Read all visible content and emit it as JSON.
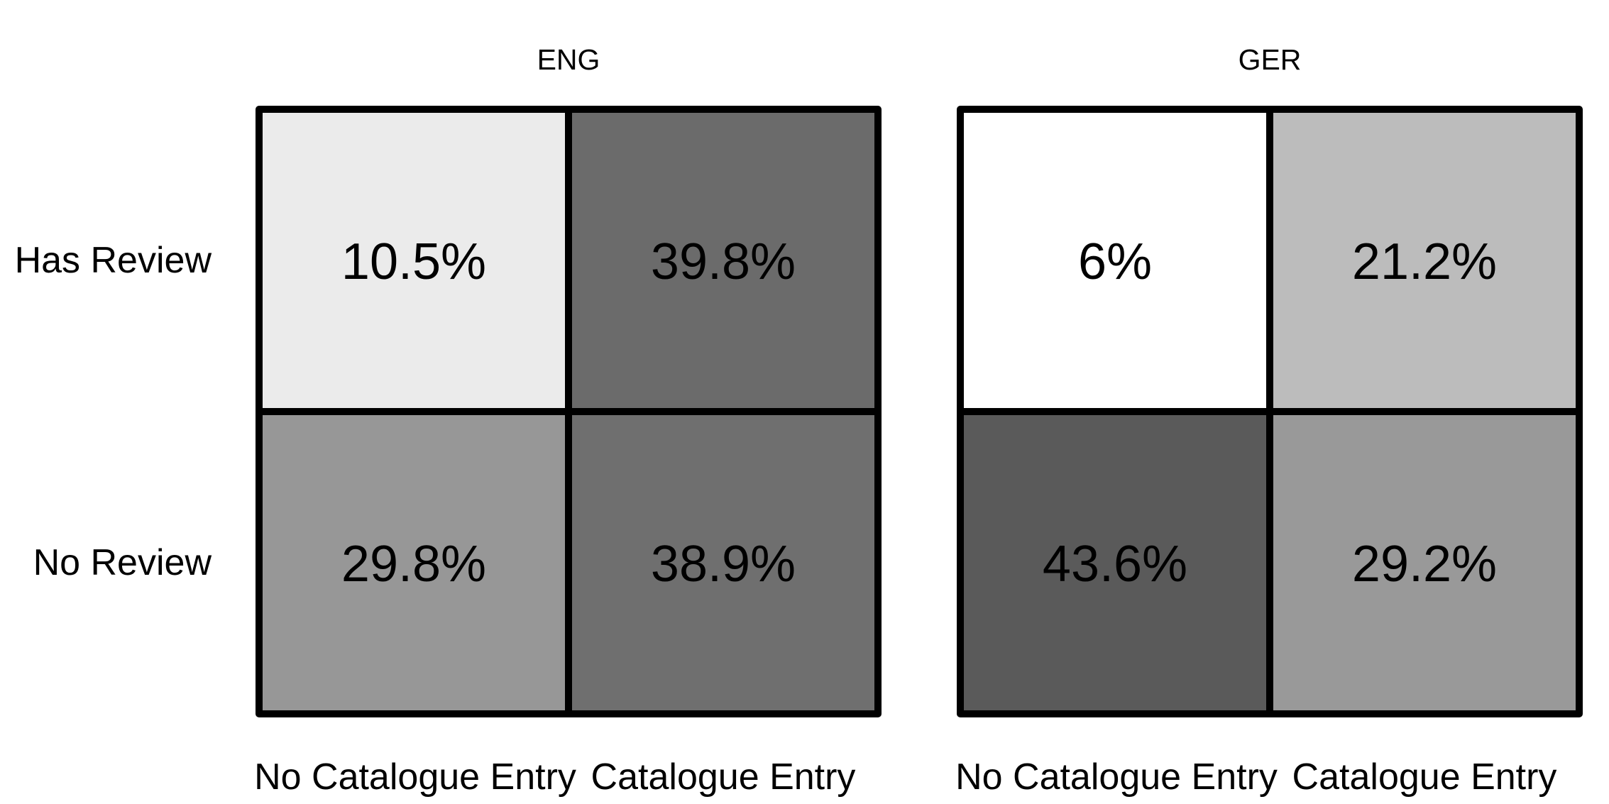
{
  "chart_data": {
    "type": "heatmap",
    "rows": [
      "Has Review",
      "No Review"
    ],
    "columns": [
      "No Catalogue Entry",
      "Catalogue Entry"
    ],
    "panels": [
      {
        "title": "ENG",
        "values": [
          [
            10.5,
            39.8
          ],
          [
            29.8,
            38.9
          ]
        ],
        "labels": [
          [
            "10.5%",
            "39.8%"
          ],
          [
            "29.8%",
            "38.9%"
          ]
        ]
      },
      {
        "title": "GER",
        "values": [
          [
            6,
            21.2
          ],
          [
            43.6,
            29.2
          ]
        ],
        "labels": [
          [
            "6%",
            "21.2%"
          ],
          [
            "43.6%",
            "29.2%"
          ]
        ]
      }
    ],
    "color_scale": {
      "low": "#ffffff",
      "high": "#5a5a5a",
      "min": 6,
      "max": 43.6
    },
    "legend": "none",
    "grid": false
  }
}
